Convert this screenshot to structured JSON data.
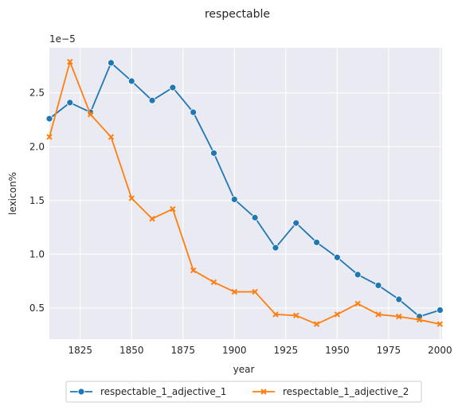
{
  "chart_data": {
    "type": "line",
    "title": "respectable",
    "xlabel": "year",
    "ylabel": "lexicon%",
    "y_offset_label": "1e−5",
    "x": [
      1810,
      1820,
      1830,
      1840,
      1850,
      1860,
      1870,
      1880,
      1890,
      1900,
      1910,
      1920,
      1930,
      1940,
      1950,
      1960,
      1970,
      1980,
      1990,
      2000
    ],
    "xlim": [
      1810,
      2001
    ],
    "ylim": [
      0.21,
      2.92
    ],
    "x_ticks": [
      1825,
      1850,
      1875,
      1900,
      1925,
      1950,
      1975,
      2000
    ],
    "x_tick_labels": [
      "1825",
      "1850",
      "1875",
      "1900",
      "1925",
      "1950",
      "1975",
      "2000"
    ],
    "y_ticks": [
      0.5,
      1.0,
      1.5,
      2.0,
      2.5
    ],
    "y_tick_labels": [
      "0.5",
      "1.0",
      "1.5",
      "2.0",
      "2.5"
    ],
    "grid": true,
    "legend_position": "bottom-center",
    "series": [
      {
        "name": "respectable_1_adjective_1",
        "color": "#1f77b4",
        "marker": "circle",
        "values": [
          2.26,
          2.41,
          2.32,
          2.78,
          2.61,
          2.43,
          2.55,
          2.32,
          1.94,
          1.51,
          1.34,
          1.06,
          1.29,
          1.11,
          0.97,
          0.81,
          0.71,
          0.58,
          0.42,
          0.48
        ]
      },
      {
        "name": "respectable_1_adjective_2",
        "color": "#ff7f0e",
        "marker": "x",
        "values": [
          2.09,
          2.79,
          2.3,
          2.09,
          1.52,
          1.33,
          1.42,
          0.85,
          0.74,
          0.65,
          0.65,
          0.44,
          0.43,
          0.35,
          0.44,
          0.54,
          0.44,
          0.42,
          0.39,
          0.35
        ]
      }
    ]
  }
}
